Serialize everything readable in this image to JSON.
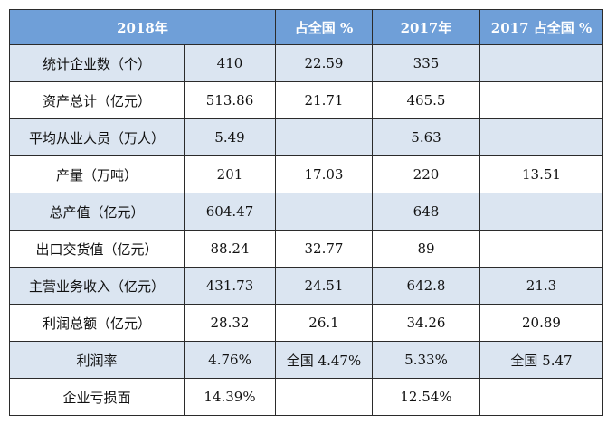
{
  "table": {
    "headers": [
      "2018年",
      "占全国 %",
      "2017年",
      "2017 占全国 %"
    ],
    "rows": [
      {
        "label": "统计企业数（个）",
        "v2018": "410",
        "share2018": "22.59",
        "v2017": "335",
        "share2017": ""
      },
      {
        "label": "资产总计（亿元）",
        "v2018": "513.86",
        "share2018": "21.71",
        "v2017": "465.5",
        "share2017": ""
      },
      {
        "label": "平均从业人员（万人）",
        "v2018": "5.49",
        "share2018": "",
        "v2017": "5.63",
        "share2017": ""
      },
      {
        "label": "产量（万吨）",
        "v2018": "201",
        "share2018": "17.03",
        "v2017": "220",
        "share2017": "13.51"
      },
      {
        "label": "总产值（亿元）",
        "v2018": "604.47",
        "share2018": "",
        "v2017": "648",
        "share2017": ""
      },
      {
        "label": "出口交货值（亿元）",
        "v2018": "88.24",
        "share2018": "32.77",
        "v2017": "89",
        "share2017": ""
      },
      {
        "label": "主营业务收入（亿元）",
        "v2018": "431.73",
        "share2018": "24.51",
        "v2017": "642.8",
        "share2017": "21.3"
      },
      {
        "label": "利润总额（亿元）",
        "v2018": "28.32",
        "share2018": "26.1",
        "v2017": "34.26",
        "share2017": "20.89"
      },
      {
        "label": "利润率",
        "v2018": "4.76%",
        "share2018": "全国 4.47%",
        "v2017": "5.33%",
        "share2017": "全国 5.47"
      },
      {
        "label": "企业亏损面",
        "v2018": "14.39%",
        "share2018": "",
        "v2017": "12.54%",
        "share2017": ""
      }
    ]
  },
  "colors": {
    "header_bg": "#6f9fd8",
    "header_text": "#ffffff",
    "row_stripe": "#dbe5f1",
    "row_plain": "#ffffff",
    "border": "#2b2b2b"
  }
}
